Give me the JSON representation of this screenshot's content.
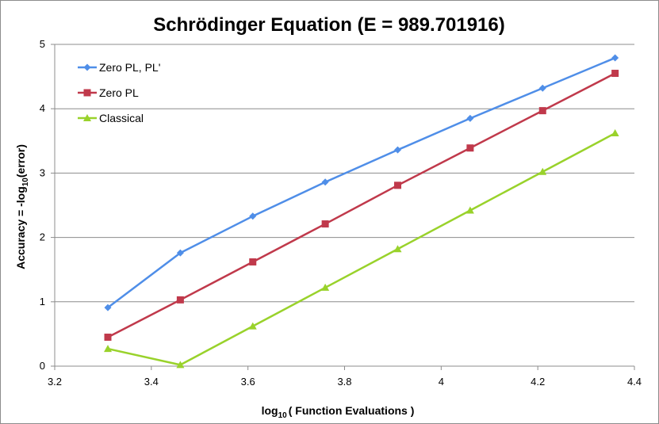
{
  "chart_data": {
    "type": "line",
    "title": "Schrödinger Equation (E = 989.701916)",
    "xlabel": {
      "prefix": "log",
      "subscript": "10",
      "suffix": "( Function Evaluations )"
    },
    "ylabel": {
      "prefix": "Accuracy = -log",
      "subscript": "10",
      "suffix": "(error)"
    },
    "xlim": [
      3.2,
      4.4
    ],
    "ylim": [
      0,
      5
    ],
    "x_ticks": [
      "3.2",
      "3.4",
      "3.6",
      "3.8",
      "4",
      "4.2",
      "4.4"
    ],
    "y_ticks": [
      "0",
      "1",
      "2",
      "3",
      "4",
      "5"
    ],
    "grid": "horizontal",
    "legend_position": "top-left",
    "series": [
      {
        "name": "Zero PL, PL'",
        "color": "#4f8ee8",
        "marker": "diamond",
        "x": [
          3.31,
          3.46,
          3.61,
          3.76,
          3.91,
          4.06,
          4.21,
          4.36
        ],
        "y": [
          0.91,
          1.76,
          2.33,
          2.86,
          3.36,
          3.85,
          4.32,
          4.79
        ]
      },
      {
        "name": "Zero PL",
        "color": "#c0394b",
        "marker": "square",
        "x": [
          3.31,
          3.46,
          3.61,
          3.76,
          3.91,
          4.06,
          4.21,
          4.36
        ],
        "y": [
          0.45,
          1.03,
          1.62,
          2.21,
          2.81,
          3.39,
          3.97,
          4.55
        ]
      },
      {
        "name": "Classical",
        "color": "#99d22b",
        "marker": "triangle",
        "x": [
          3.31,
          3.46,
          3.61,
          3.76,
          3.91,
          4.06,
          4.21,
          4.36
        ],
        "y": [
          0.27,
          0.02,
          0.62,
          1.22,
          1.82,
          2.42,
          3.02,
          3.62
        ]
      }
    ]
  }
}
